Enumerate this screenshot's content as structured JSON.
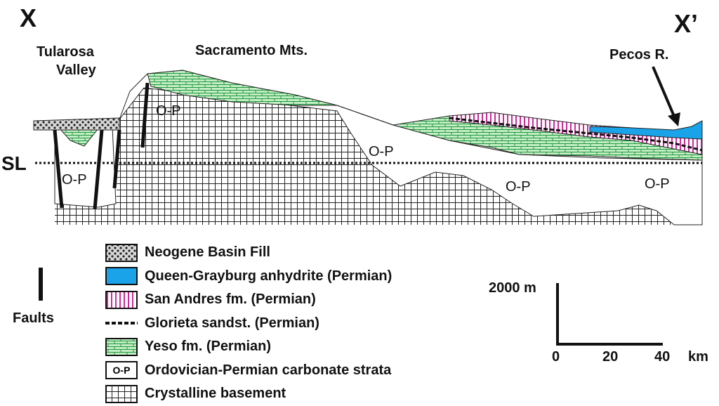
{
  "section": {
    "end_left": "X",
    "end_right": "X’",
    "places": {
      "tularosa_line1": "Tularosa",
      "tularosa_line2": "Valley",
      "sacramento": "Sacramento Mts.",
      "pecos": "Pecos R."
    },
    "sea_level": "SL",
    "unit_labels": [
      "O-P",
      "O-P",
      "O-P",
      "O-P",
      "O-P"
    ]
  },
  "legend": {
    "items": [
      {
        "key": "neogene",
        "label": "Neogene Basin Fill"
      },
      {
        "key": "queen",
        "label": "Queen-Grayburg anhydrite (Permian)",
        "color": "#1aa3e8"
      },
      {
        "key": "sanandres",
        "label": "San Andres fm. (Permian)",
        "color": "#cc2a9a"
      },
      {
        "key": "glorieta",
        "label": "Glorieta sandst. (Permian)"
      },
      {
        "key": "yeso",
        "label": "Yeso fm. (Permian)",
        "color": "#27b34a"
      },
      {
        "key": "op",
        "label": "Ordovician-Permian carbonate  strata",
        "swatch_text": "O-P"
      },
      {
        "key": "basement",
        "label": "Crystalline basement"
      }
    ],
    "faults_label": "Faults"
  },
  "scale": {
    "vertical_label": "2000 m",
    "ticks": [
      "0",
      "20",
      "40"
    ],
    "unit": "km"
  }
}
